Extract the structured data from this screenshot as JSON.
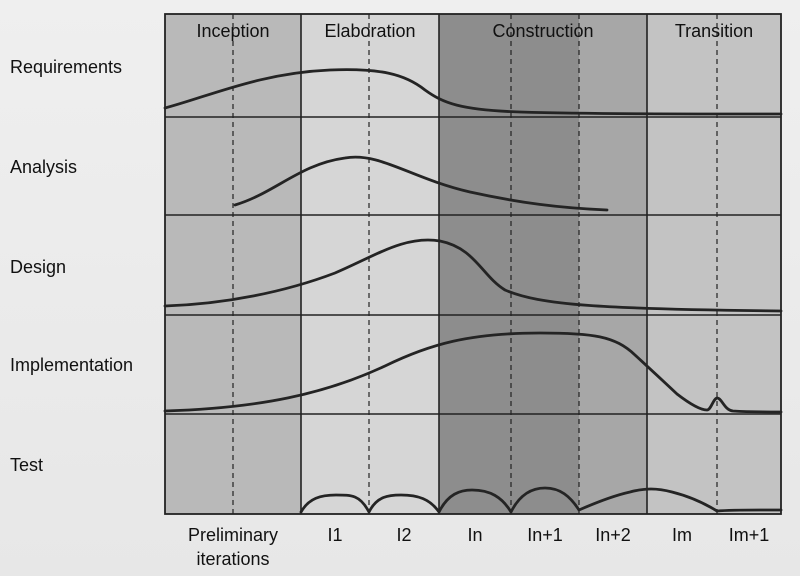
{
  "phases": [
    {
      "label": "Inception"
    },
    {
      "label": "Elaboration"
    },
    {
      "label": "Construction"
    },
    {
      "label": "Transition"
    }
  ],
  "workflows": [
    {
      "label": "Requirements"
    },
    {
      "label": "Analysis"
    },
    {
      "label": "Design"
    },
    {
      "label": "Implementation"
    },
    {
      "label": "Test"
    }
  ],
  "iterations": [
    {
      "line1": "Preliminary",
      "line2": "iterations"
    },
    {
      "line1": "I1",
      "line2": ""
    },
    {
      "line1": "I2",
      "line2": ""
    },
    {
      "line1": "In",
      "line2": ""
    },
    {
      "line1": "In+1",
      "line2": ""
    },
    {
      "line1": "In+2",
      "line2": ""
    },
    {
      "line1": "Im",
      "line2": ""
    },
    {
      "line1": "Im+1",
      "line2": ""
    }
  ],
  "colors": {
    "inception_bg": "#b9b9b9",
    "elaboration_bg": "#d6d6d6",
    "construction_bg": "#8d8d8d",
    "construction_late_bg": "#a7a7a7",
    "transition_bg": "#c3c3c3",
    "grid": "#222222",
    "curve": "#242424"
  }
}
